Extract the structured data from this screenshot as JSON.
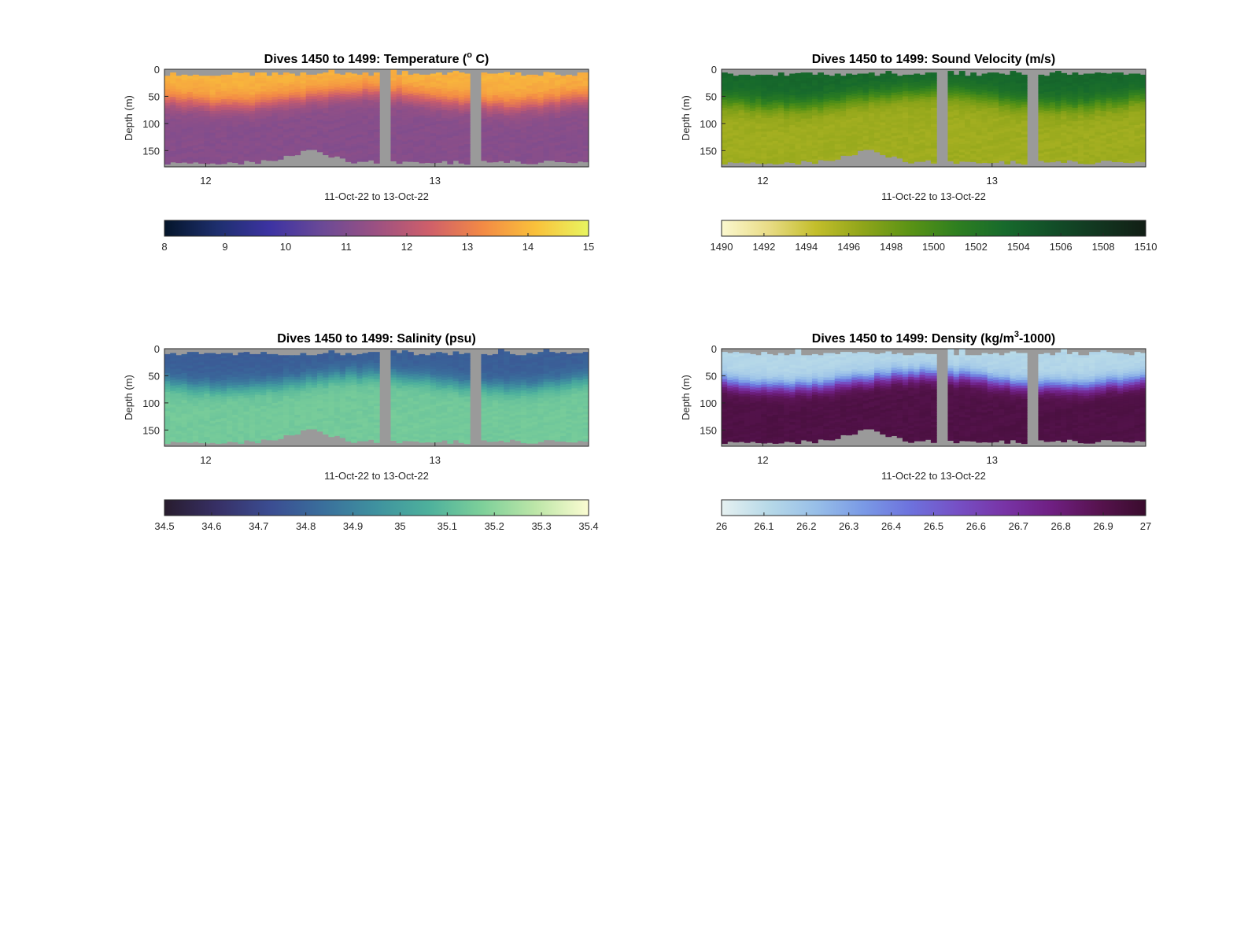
{
  "figure": {
    "background": "#ffffff"
  },
  "chart_data": [
    {
      "type": "heatmap",
      "variable": "temperature",
      "title_parts": [
        "Dives 1450 to 1499: Temperature (",
        "o",
        " C)"
      ],
      "title_sup_index": 1,
      "xlabel": "11-Oct-22 to 13-Oct-22",
      "ylabel": "Depth (m)",
      "x_ticks": [
        "12",
        "13"
      ],
      "x_tick_values": [
        12,
        13
      ],
      "xlim": [
        11.82,
        13.67
      ],
      "y_ticks": [
        "0",
        "50",
        "100",
        "150"
      ],
      "y_tick_values": [
        0,
        50,
        100,
        150
      ],
      "ylim": [
        0,
        180
      ],
      "y_direction": "down",
      "dives": 50,
      "gaps": [
        {
          "start": 12.76,
          "end": 12.79
        },
        {
          "start": 13.16,
          "end": 13.2
        }
      ],
      "no_data_color": "#9a9a9a",
      "profile": {
        "surface": 13.9,
        "mix_depth": 55,
        "deep": 11.1,
        "scale": 40
      },
      "colorbar": {
        "min": 8,
        "max": 15,
        "ticks": [
          "8",
          "9",
          "10",
          "11",
          "12",
          "13",
          "14",
          "15"
        ],
        "colormap": [
          "#04152a",
          "#1e2f6e",
          "#3d33a3",
          "#6c4a96",
          "#9c5182",
          "#cf5f6a",
          "#f38a45",
          "#f9c13b",
          "#e8f560"
        ]
      }
    },
    {
      "type": "heatmap",
      "variable": "sound_velocity",
      "title_parts": [
        "Dives 1450 to 1499: Sound Velocity (m/s)"
      ],
      "title_sup_index": -1,
      "xlabel": "11-Oct-22 to 13-Oct-22",
      "ylabel": "Depth (m)",
      "x_ticks": [
        "12",
        "13"
      ],
      "x_tick_values": [
        12,
        13
      ],
      "xlim": [
        11.82,
        13.67
      ],
      "y_ticks": [
        "0",
        "50",
        "100",
        "150"
      ],
      "y_tick_values": [
        0,
        50,
        100,
        150
      ],
      "ylim": [
        0,
        180
      ],
      "y_direction": "down",
      "dives": 50,
      "gaps": [
        {
          "start": 12.76,
          "end": 12.79
        },
        {
          "start": 13.16,
          "end": 13.2
        }
      ],
      "no_data_color": "#9a9a9a",
      "profile": {
        "surface": 1503.6,
        "mix_depth": 55,
        "deep": 1496.0,
        "scale": 40
      },
      "colorbar": {
        "min": 1490,
        "max": 1510,
        "ticks": [
          "1490",
          "1492",
          "1494",
          "1496",
          "1498",
          "1500",
          "1502",
          "1504",
          "1506",
          "1508",
          "1510"
        ],
        "colormap": [
          "#fbf8cf",
          "#e9dc86",
          "#c3be2b",
          "#8fa51a",
          "#5a9315",
          "#2e7f20",
          "#176a2c",
          "#124f28",
          "#123620",
          "#121e15"
        ]
      }
    },
    {
      "type": "heatmap",
      "variable": "salinity",
      "title_parts": [
        "Dives 1450 to 1499: Salinity (psu)"
      ],
      "title_sup_index": -1,
      "xlabel": "11-Oct-22 to 13-Oct-22",
      "ylabel": "Depth (m)",
      "x_ticks": [
        "12",
        "13"
      ],
      "x_tick_values": [
        12,
        13
      ],
      "xlim": [
        11.82,
        13.67
      ],
      "y_ticks": [
        "0",
        "50",
        "100",
        "150"
      ],
      "y_tick_values": [
        0,
        50,
        100,
        150
      ],
      "ylim": [
        0,
        180
      ],
      "y_direction": "down",
      "dives": 50,
      "gaps": [
        {
          "start": 12.76,
          "end": 12.79
        },
        {
          "start": 13.16,
          "end": 13.2
        }
      ],
      "no_data_color": "#9a9a9a",
      "profile": {
        "surface": 34.78,
        "mix_depth": 60,
        "deep": 35.15,
        "scale": 35
      },
      "colorbar": {
        "min": 34.5,
        "max": 35.4,
        "ticks": [
          "34.5",
          "34.6",
          "34.7",
          "34.8",
          "34.9",
          "35",
          "35.1",
          "35.2",
          "35.3",
          "35.4"
        ],
        "colormap": [
          "#281c2e",
          "#373066",
          "#3b4d92",
          "#3a6f9c",
          "#3f929f",
          "#4eb19c",
          "#7ed09a",
          "#bde6a8",
          "#fbfcd2"
        ]
      }
    },
    {
      "type": "heatmap",
      "variable": "density",
      "title_parts": [
        "Dives 1450 to 1499: Density (kg/m",
        "3",
        "-1000)"
      ],
      "title_sup_index": 1,
      "xlabel": "11-Oct-22 to 13-Oct-22",
      "ylabel": "Depth (m)",
      "x_ticks": [
        "12",
        "13"
      ],
      "x_tick_values": [
        12,
        13
      ],
      "xlim": [
        11.82,
        13.67
      ],
      "y_ticks": [
        "0",
        "50",
        "100",
        "150"
      ],
      "y_tick_values": [
        0,
        50,
        100,
        150
      ],
      "ylim": [
        0,
        180
      ],
      "y_direction": "down",
      "dives": 50,
      "gaps": [
        {
          "start": 12.76,
          "end": 12.79
        },
        {
          "start": 13.16,
          "end": 13.2
        }
      ],
      "no_data_color": "#9a9a9a",
      "profile": {
        "surface": 26.12,
        "mix_depth": 60,
        "deep": 26.92,
        "scale": 30
      },
      "colorbar": {
        "min": 26,
        "max": 27,
        "ticks": [
          "26",
          "26.1",
          "26.2",
          "26.3",
          "26.4",
          "26.5",
          "26.6",
          "26.7",
          "26.8",
          "26.9",
          "27"
        ],
        "colormap": [
          "#e6f1f1",
          "#b7d9e8",
          "#98bfe8",
          "#7a9ae6",
          "#6d72dd",
          "#7650c5",
          "#7834a6",
          "#6f1f82",
          "#57134f",
          "#3a0c2d"
        ]
      }
    }
  ]
}
